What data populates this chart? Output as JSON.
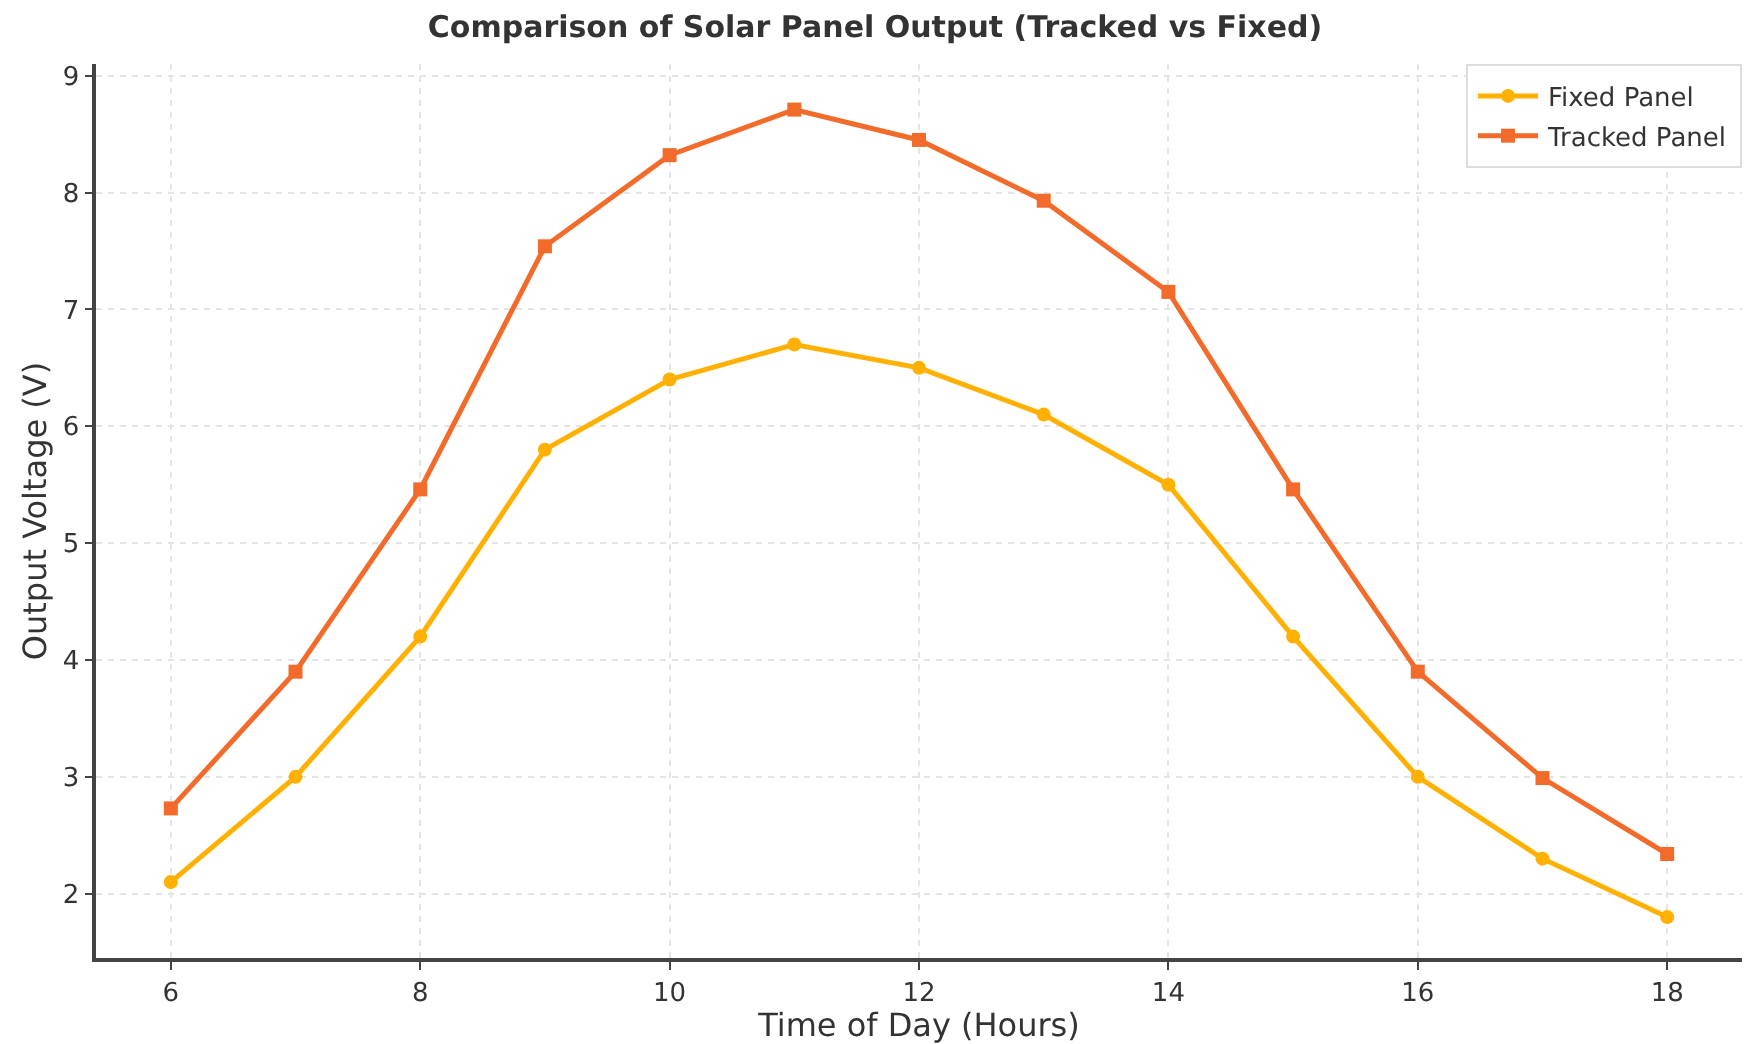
{
  "chart_data": {
    "type": "line",
    "title": "Comparison of Solar Panel Output (Tracked vs Fixed)",
    "xlabel": "Time of Day (Hours)",
    "ylabel": "Output Voltage (V)",
    "x": [
      6,
      7,
      8,
      9,
      10,
      11,
      12,
      13,
      14,
      15,
      16,
      17,
      18
    ],
    "series": [
      {
        "name": "Fixed Panel",
        "color": "#ffb000",
        "marker": "circle",
        "values": [
          2.1,
          3.0,
          4.2,
          5.8,
          6.4,
          6.7,
          6.5,
          6.1,
          5.5,
          4.2,
          3.0,
          2.3,
          1.8
        ]
      },
      {
        "name": "Tracked Panel",
        "color": "#f26b2a",
        "marker": "square",
        "values": [
          2.73,
          3.9,
          5.46,
          7.54,
          8.32,
          8.71,
          8.45,
          7.93,
          7.15,
          5.46,
          3.9,
          2.99,
          2.34
        ]
      }
    ],
    "xlim": [
      5.4,
      18.6
    ],
    "xticks": [
      6,
      8,
      10,
      12,
      14,
      16,
      18
    ],
    "ylim": [
      1.45,
      9.1
    ],
    "yticks": [
      2,
      3,
      4,
      5,
      6,
      7,
      8,
      9
    ],
    "grid": true,
    "legend": "top right",
    "line_style": "solid"
  }
}
